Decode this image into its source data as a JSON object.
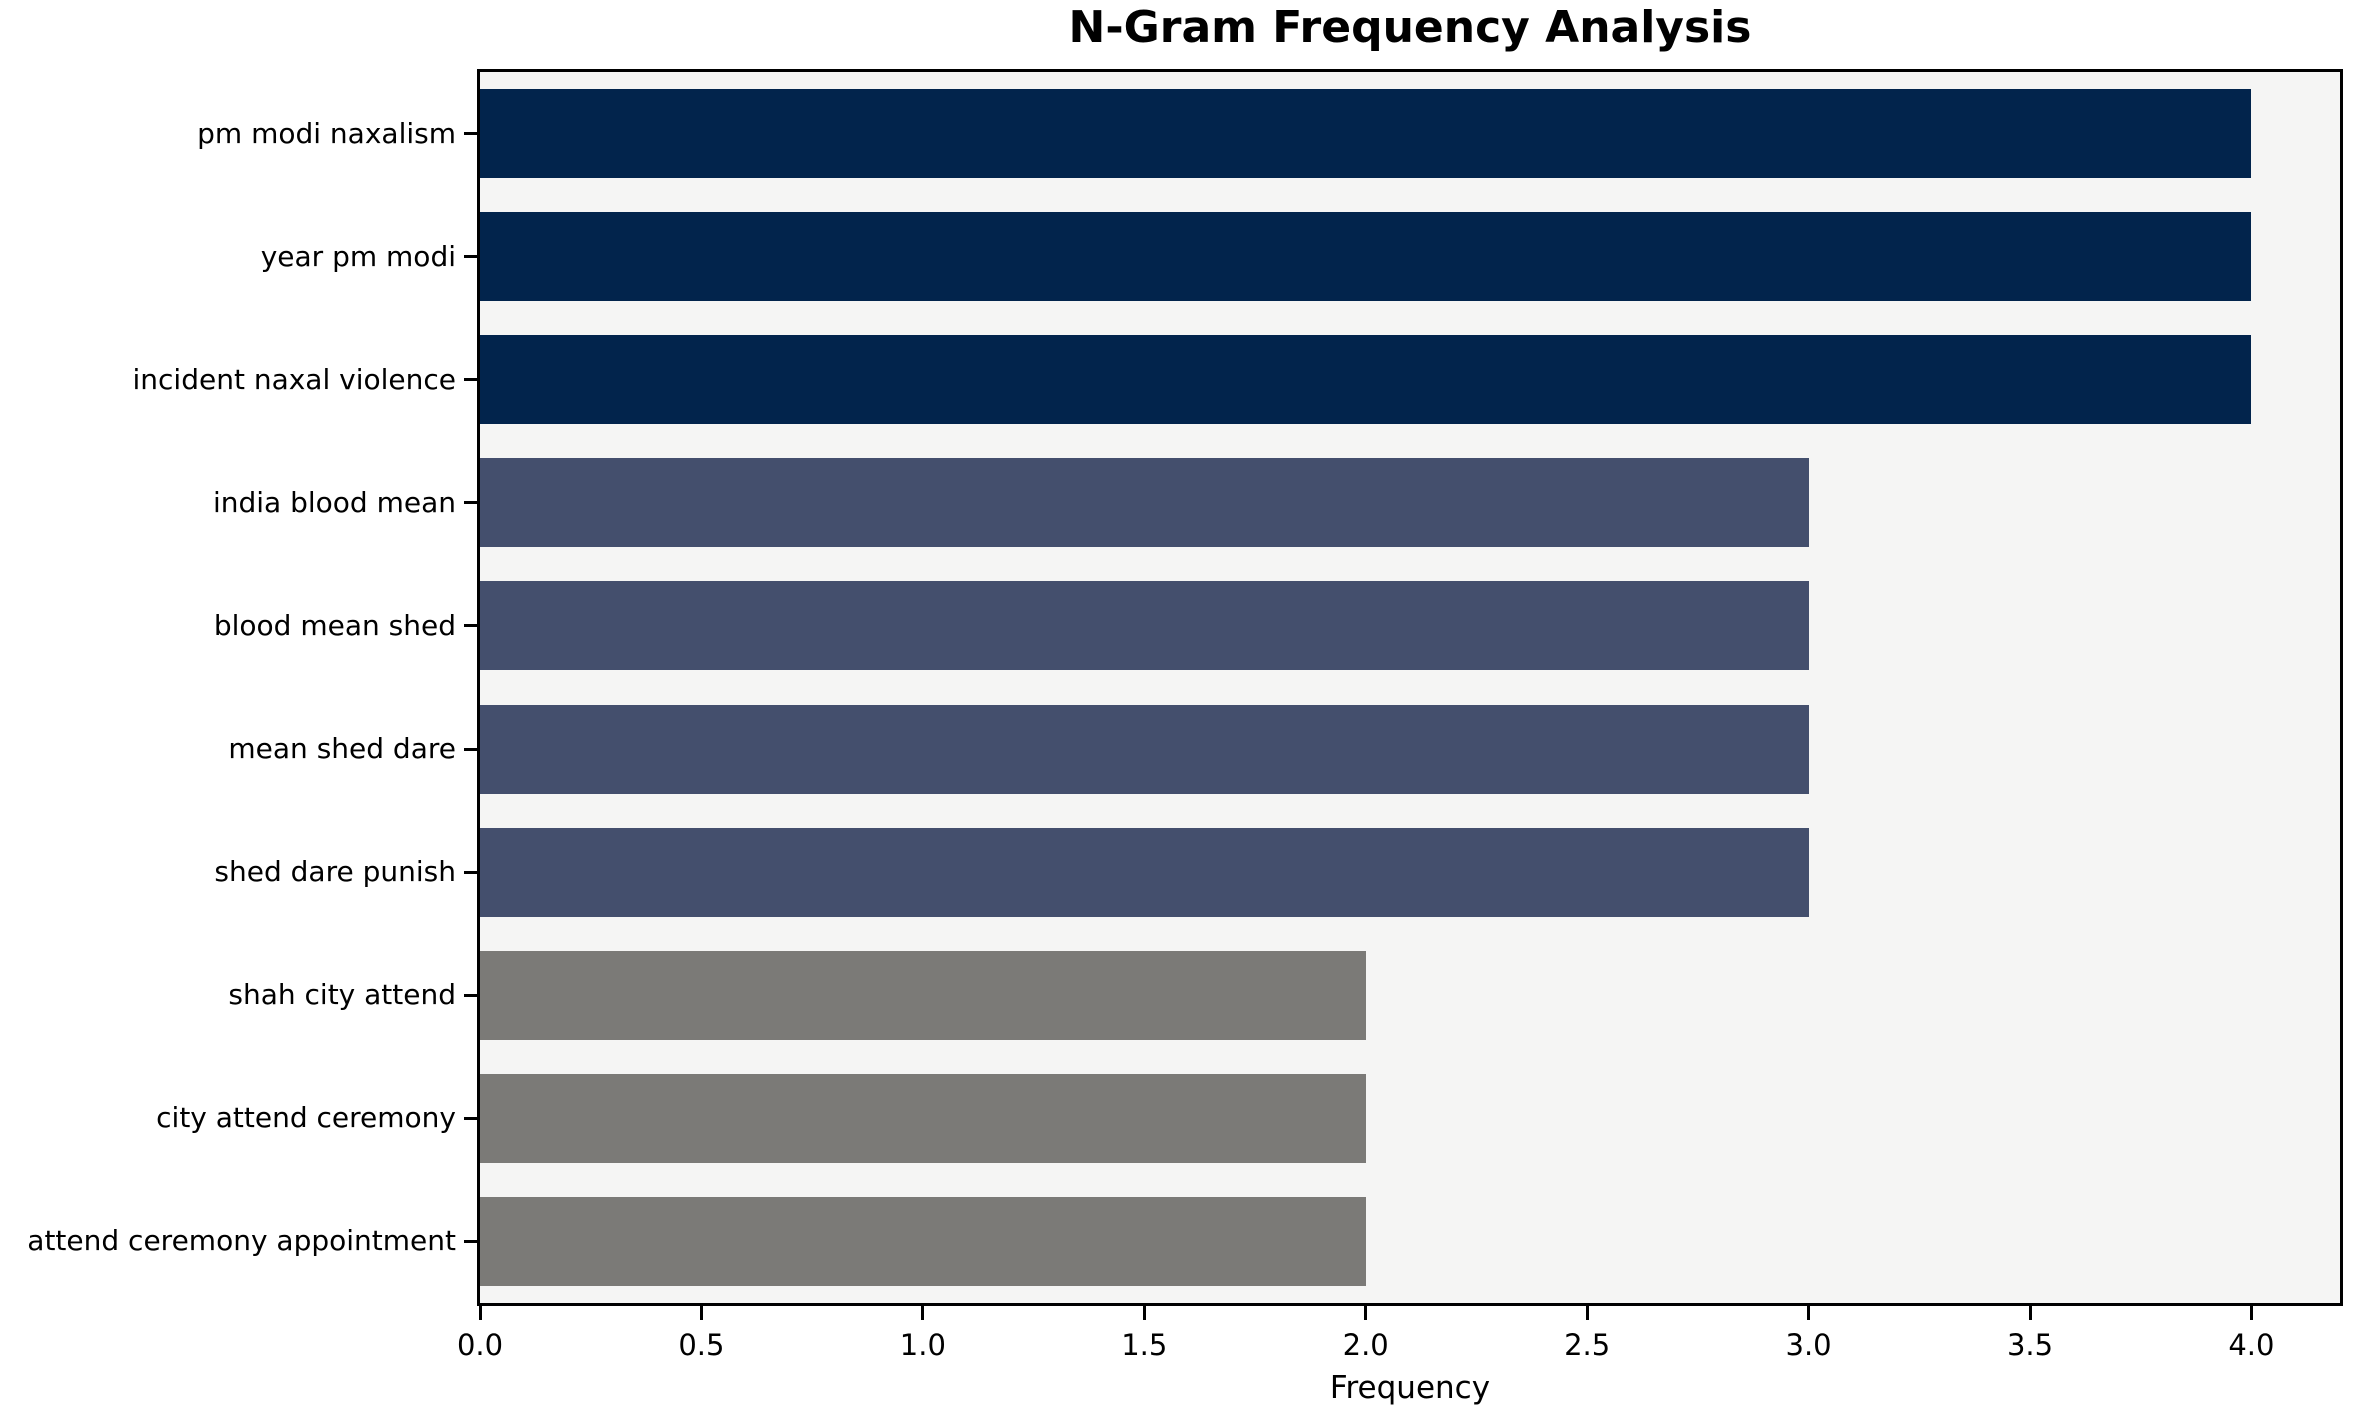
{
  "title": "N-Gram Frequency Analysis",
  "chart_data": {
    "type": "bar",
    "orientation": "horizontal",
    "title": "N-Gram Frequency Analysis",
    "xlabel": "Frequency",
    "ylabel": "",
    "categories": [
      "pm modi naxalism",
      "year pm modi",
      "incident naxal violence",
      "india blood mean",
      "blood mean shed",
      "mean shed dare",
      "shed dare punish",
      "shah city attend",
      "city attend ceremony",
      "attend ceremony appointment"
    ],
    "values": [
      4,
      4,
      4,
      3,
      3,
      3,
      3,
      2,
      2,
      2
    ],
    "bar_colors": [
      "#02244c",
      "#02244c",
      "#02244c",
      "#444f6d",
      "#444f6d",
      "#444f6d",
      "#444f6d",
      "#7b7a77",
      "#7b7a77",
      "#7b7a77"
    ],
    "color_legend": {
      "frequency_4": "#02244c",
      "frequency_3": "#444f6d",
      "frequency_2": "#7b7a77"
    },
    "xlim": [
      0,
      4.2
    ],
    "xticks": [
      0.0,
      0.5,
      1.0,
      1.5,
      2.0,
      2.5,
      3.0,
      3.5,
      4.0
    ],
    "xtick_labels": [
      "0.0",
      "0.5",
      "1.0",
      "1.5",
      "2.0",
      "2.5",
      "3.0",
      "3.5",
      "4.0"
    ],
    "grid": false,
    "legend_position": "none",
    "plot_background": "#f5f5f4",
    "figure_background": "#ffffff"
  }
}
